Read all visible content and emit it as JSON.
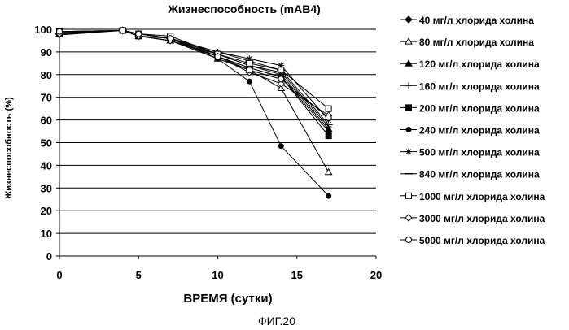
{
  "chart_data": {
    "type": "line",
    "title": "Жизнеспособность (mAB4)",
    "xlabel": "ВРЕМЯ (сутки)",
    "ylabel": "Жизнеспособность (%)",
    "xlim": [
      0,
      20
    ],
    "ylim": [
      0,
      100
    ],
    "xticks": [
      0,
      5,
      10,
      15,
      20
    ],
    "yticks": [
      0,
      10,
      20,
      30,
      40,
      50,
      60,
      70,
      80,
      90,
      100
    ],
    "grid": "horizontal",
    "legend_position": "right",
    "x": [
      0,
      4,
      5,
      7,
      10,
      12,
      14,
      17
    ],
    "series": [
      {
        "name": "40 мг/л хлорида холина",
        "marker": "diamond",
        "values": [
          98,
          99.5,
          97,
          96,
          88,
          83,
          79,
          55
        ]
      },
      {
        "name": "80 мг/л хлорида холина",
        "marker": "triangle-open",
        "values": [
          99,
          99.5,
          98,
          96,
          87,
          82,
          74,
          37
        ]
      },
      {
        "name": "120 мг/л хлорида холина",
        "marker": "triangle",
        "values": [
          98,
          99.5,
          97,
          95,
          89,
          84,
          80,
          56
        ]
      },
      {
        "name": "160 мг/л хлорида холина",
        "marker": "plus",
        "values": [
          98,
          99.5,
          98,
          96,
          89,
          84,
          81,
          57
        ]
      },
      {
        "name": "200 мг/л хлорида холина",
        "marker": "square",
        "values": [
          99,
          99.5,
          97,
          96,
          88,
          83,
          79,
          53
        ]
      },
      {
        "name": "240 мг/л хлорида холина",
        "marker": "circle",
        "values": [
          97.5,
          99.5,
          97,
          95,
          87,
          77,
          48.5,
          26.5
        ]
      },
      {
        "name": "500 мг/л хлорида холина",
        "marker": "star",
        "values": [
          98.5,
          99.5,
          98,
          96,
          90,
          87,
          84,
          60
        ]
      },
      {
        "name": "840 мг/л хлорида холина",
        "marker": "dash",
        "values": [
          98,
          99.5,
          98,
          96,
          90,
          86,
          82,
          58
        ]
      },
      {
        "name": "1000 мг/л хлорида холина",
        "marker": "square-open",
        "values": [
          98.5,
          99.5,
          98,
          97,
          89,
          85,
          82,
          65
        ]
      },
      {
        "name": "3000 мг/л хлорида холина",
        "marker": "diamond-open",
        "values": [
          98,
          99.5,
          97,
          95,
          88,
          81,
          76,
          62
        ]
      },
      {
        "name": "5000 мг/л хлорида холина",
        "marker": "circle-open",
        "values": [
          99,
          99.5,
          98,
          96,
          88,
          82,
          78,
          61
        ]
      }
    ]
  },
  "caption": "ФИГ.20"
}
